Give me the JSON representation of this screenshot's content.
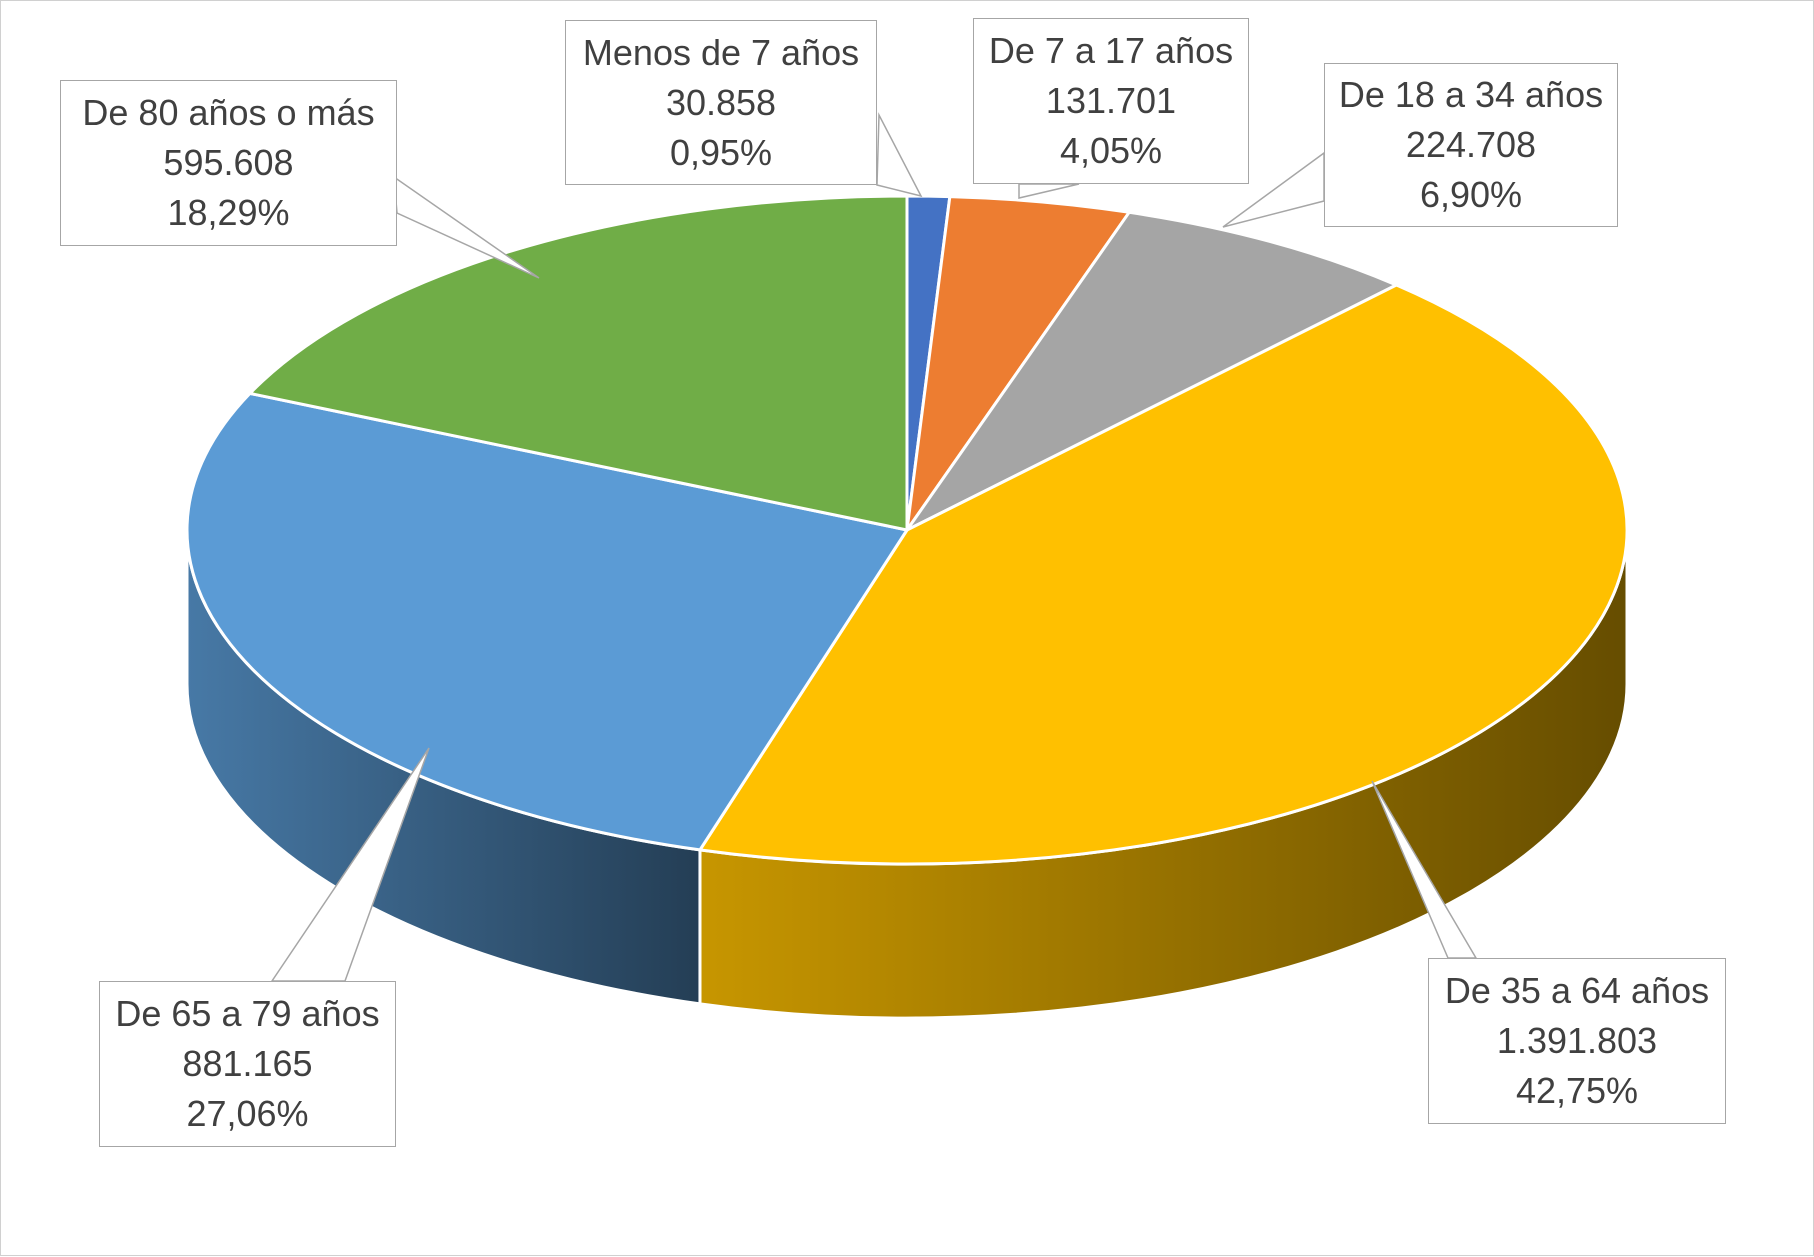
{
  "chart_data": {
    "type": "pie",
    "style": "3d",
    "categories": [
      "Menos de 7 años",
      "De 7 a 17 años",
      "De 18 a 34 años",
      "De 35 a 64 años",
      "De 65 a 79 años",
      "De 80 años o más"
    ],
    "values": [
      30858,
      131701,
      224708,
      1391803,
      881165,
      595608
    ],
    "value_labels": [
      "30.858",
      "131.701",
      "224.708",
      "1.391.803",
      "881.165",
      "595.608"
    ],
    "percent_labels": [
      "0,95%",
      "4,05%",
      "6,90%",
      "42,75%",
      "27,06%",
      "18,29%"
    ],
    "colors": [
      "#4472C4",
      "#ED7D31",
      "#A5A5A5",
      "#FFC000",
      "#5B9BD5",
      "#70AD47"
    ],
    "legend": "none",
    "data_labels": "callouts"
  }
}
